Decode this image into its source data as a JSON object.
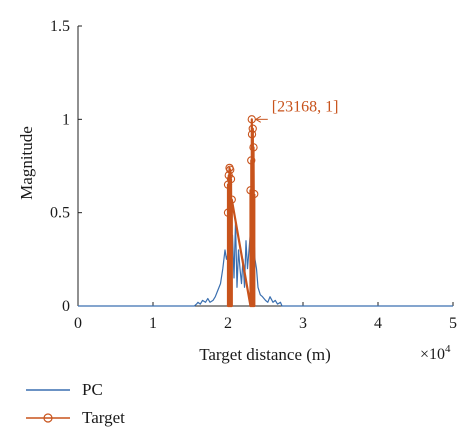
{
  "chart_data": {
    "type": "line",
    "xlabel": "Target distance (m)",
    "ylabel": "Magnitude",
    "x_multiplier": "×10",
    "x_multiplier_exp": "4",
    "xlim": [
      0,
      5
    ],
    "ylim": [
      0,
      1.5
    ],
    "xticks": [
      "0",
      "1",
      "2",
      "3",
      "4",
      "5"
    ],
    "yticks": [
      "0",
      "0.5",
      "1",
      "1.5"
    ],
    "grid": false,
    "legend_position": "bottom-left",
    "series": [
      {
        "name": "PC",
        "color": "#3a6fb0",
        "x": [
          0,
          1.55,
          1.58,
          1.6,
          1.63,
          1.66,
          1.7,
          1.73,
          1.76,
          1.8,
          1.83,
          1.86,
          1.9,
          1.93,
          1.96,
          1.98,
          2.0,
          2.02,
          2.04,
          2.06,
          2.08,
          2.1,
          2.12,
          2.14,
          2.16,
          2.18,
          2.2,
          2.22,
          2.24,
          2.26,
          2.28,
          2.3,
          2.32,
          2.34,
          2.36,
          2.38,
          2.4,
          2.43,
          2.46,
          2.5,
          2.53,
          2.56,
          2.6,
          2.63,
          2.66,
          2.7,
          2.72,
          5
        ],
        "y": [
          0,
          0,
          0.01,
          0.02,
          0.01,
          0.03,
          0.02,
          0.04,
          0.02,
          0.03,
          0.05,
          0.08,
          0.12,
          0.2,
          0.3,
          0.25,
          0.28,
          0.35,
          0.2,
          0.38,
          0.15,
          0.45,
          0.1,
          0.3,
          0.2,
          0.12,
          0.25,
          0.1,
          0.35,
          0.2,
          0.3,
          0.4,
          0.15,
          0.43,
          0.25,
          0.2,
          0.1,
          0.06,
          0.05,
          0.03,
          0.02,
          0.05,
          0.02,
          0.03,
          0.01,
          0.02,
          0,
          0
        ]
      },
      {
        "name": "Target",
        "color": "#c8531c",
        "x": [
          2.0,
          2.0,
          2.0,
          2.0,
          2.01,
          2.01,
          2.02,
          2.02,
          2.03,
          2.03,
          2.04,
          2.04,
          2.05,
          2.05,
          2.3,
          2.3,
          2.31,
          2.31,
          2.32,
          2.32,
          2.3168,
          2.3168,
          2.33,
          2.33,
          2.34,
          2.34,
          2.35,
          2.35
        ],
        "y": [
          0,
          0.5,
          0,
          0.65,
          0,
          0.7,
          0,
          0.74,
          0,
          0.73,
          0,
          0.68,
          0,
          0.57,
          0,
          0.62,
          0,
          0.78,
          0,
          0.92,
          0,
          1.0,
          0,
          0.95,
          0,
          0.85,
          0,
          0.6
        ]
      }
    ],
    "annotation": {
      "text": "[23168, 1]",
      "x": 2.3168,
      "y": 1.0
    }
  }
}
